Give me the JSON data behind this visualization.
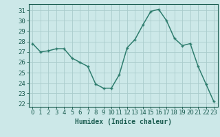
{
  "x": [
    0,
    1,
    2,
    3,
    4,
    5,
    6,
    7,
    8,
    9,
    10,
    11,
    12,
    13,
    14,
    15,
    16,
    17,
    18,
    19,
    20,
    21,
    22,
    23
  ],
  "y": [
    27.8,
    27.0,
    27.1,
    27.3,
    27.3,
    26.4,
    26.0,
    25.6,
    23.9,
    23.5,
    23.5,
    24.8,
    27.4,
    28.2,
    29.6,
    30.9,
    31.1,
    30.0,
    28.3,
    27.6,
    27.8,
    25.6,
    23.9,
    22.2
  ],
  "line_color": "#2e7d6e",
  "marker": "+",
  "bg_color": "#cce8e8",
  "grid_color": "#aacccc",
  "xlabel": "Humidex (Indice chaleur)",
  "ylabel_ticks": [
    22,
    23,
    24,
    25,
    26,
    27,
    28,
    29,
    30,
    31
  ],
  "xlim": [
    -0.5,
    23.5
  ],
  "ylim": [
    21.7,
    31.6
  ],
  "tick_color": "#1a5c50",
  "axis_color": "#1a5c50",
  "font_color": "#1a5c50",
  "xlabel_fontsize": 7,
  "tick_fontsize": 6.5,
  "linewidth": 1.1,
  "markersize": 3.5
}
